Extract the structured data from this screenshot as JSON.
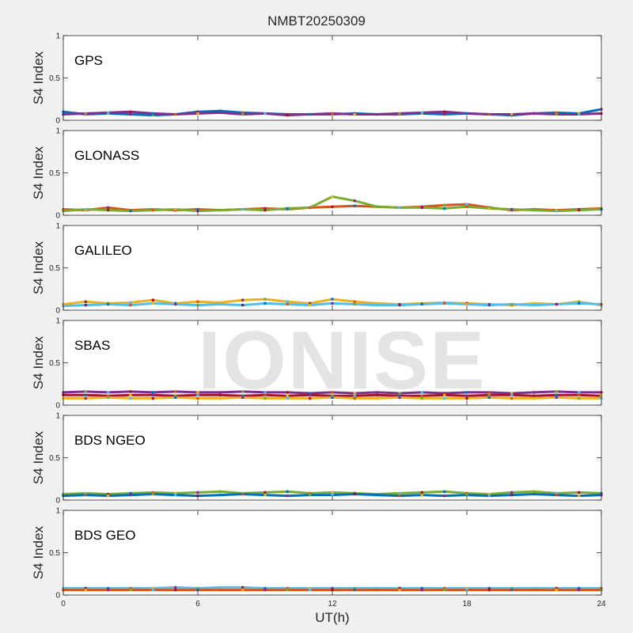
{
  "title": "NMBT20250309",
  "watermark": "IONISE",
  "colors": {
    "series": [
      "#0072BD",
      "#D95319",
      "#EDB120",
      "#7E2F8E",
      "#77AC30",
      "#4DBEEE",
      "#A2142F"
    ],
    "axes": "#262626",
    "panel_bg": "#ffffff"
  },
  "chart_data": [
    {
      "type": "scatter",
      "panel_label": "GPS",
      "ylabel": "S4 Index",
      "xlabel": "UT(h)",
      "xlim": [
        0,
        24
      ],
      "ylim": [
        0,
        1
      ],
      "xticks": [
        0,
        6,
        12,
        18,
        24
      ],
      "yticks": [
        0,
        0.5,
        1
      ],
      "ytick_labels": [
        "0",
        "0.5",
        "1"
      ],
      "grid": false,
      "series": [
        {
          "x": [
            0,
            1,
            2,
            3,
            4,
            5,
            6,
            7,
            8,
            9,
            10,
            11,
            12,
            13,
            14,
            15,
            16,
            17,
            18,
            19,
            20,
            21,
            22,
            23,
            24
          ],
          "values": [
            0.1,
            0.07,
            0.08,
            0.07,
            0.06,
            0.07,
            0.1,
            0.11,
            0.09,
            0.08,
            0.07,
            0.07,
            0.07,
            0.08,
            0.07,
            0.07,
            0.08,
            0.07,
            0.08,
            0.07,
            0.06,
            0.08,
            0.09,
            0.08,
            0.13
          ]
        },
        {
          "x": [
            0,
            1,
            2,
            3,
            4,
            5,
            6,
            7,
            8,
            9,
            10,
            11,
            12,
            13,
            14,
            15,
            16,
            17,
            18,
            19,
            20,
            21,
            22,
            23,
            24
          ],
          "values": [
            0.07,
            0.08,
            0.09,
            0.1,
            0.08,
            0.07,
            0.08,
            0.09,
            0.07,
            0.08,
            0.06,
            0.07,
            0.08,
            0.07,
            0.07,
            0.08,
            0.09,
            0.1,
            0.08,
            0.07,
            0.07,
            0.08,
            0.07,
            0.07,
            0.08
          ]
        }
      ]
    },
    {
      "type": "scatter",
      "panel_label": "GLONASS",
      "ylabel": "S4 Index",
      "xlabel": "UT(h)",
      "xlim": [
        0,
        24
      ],
      "ylim": [
        0,
        1
      ],
      "xticks": [
        0,
        6,
        12,
        18,
        24
      ],
      "yticks": [
        0,
        0.5,
        1
      ],
      "ytick_labels": [
        "0",
        "0.5",
        "1"
      ],
      "grid": false,
      "series": [
        {
          "x": [
            0,
            1,
            2,
            3,
            4,
            5,
            6,
            7,
            8,
            9,
            10,
            11,
            12,
            13,
            14,
            15,
            16,
            17,
            18,
            19,
            20,
            21,
            22,
            23,
            24
          ],
          "values": [
            0.07,
            0.06,
            0.09,
            0.06,
            0.07,
            0.06,
            0.07,
            0.06,
            0.07,
            0.08,
            0.07,
            0.09,
            0.1,
            0.11,
            0.1,
            0.09,
            0.1,
            0.12,
            0.13,
            0.09,
            0.06,
            0.07,
            0.06,
            0.07,
            0.08
          ]
        },
        {
          "x": [
            0,
            1,
            2,
            3,
            4,
            5,
            6,
            7,
            8,
            9,
            10,
            11,
            12,
            13,
            14,
            15,
            16,
            17,
            18,
            19,
            20,
            21,
            22,
            23,
            24
          ],
          "values": [
            0.05,
            0.07,
            0.06,
            0.05,
            0.06,
            0.07,
            0.05,
            0.06,
            0.07,
            0.06,
            0.08,
            0.09,
            0.22,
            0.17,
            0.1,
            0.09,
            0.09,
            0.08,
            0.1,
            0.08,
            0.07,
            0.06,
            0.05,
            0.06,
            0.07
          ]
        }
      ]
    },
    {
      "type": "scatter",
      "panel_label": "GALILEO",
      "ylabel": "S4 Index",
      "xlabel": "UT(h)",
      "xlim": [
        0,
        24
      ],
      "ylim": [
        0,
        1
      ],
      "xticks": [
        0,
        6,
        12,
        18,
        24
      ],
      "yticks": [
        0,
        0.5,
        1
      ],
      "ytick_labels": [
        "0",
        "0.5",
        "1"
      ],
      "grid": false,
      "series": [
        {
          "x": [
            0,
            1,
            2,
            3,
            4,
            5,
            6,
            7,
            8,
            9,
            10,
            11,
            12,
            13,
            14,
            15,
            16,
            17,
            18,
            19,
            20,
            21,
            22,
            23,
            24
          ],
          "values": [
            0.07,
            0.1,
            0.08,
            0.09,
            0.12,
            0.08,
            0.1,
            0.09,
            0.12,
            0.13,
            0.1,
            0.08,
            0.13,
            0.1,
            0.08,
            0.07,
            0.08,
            0.09,
            0.08,
            0.07,
            0.06,
            0.08,
            0.07,
            0.1,
            0.06
          ]
        },
        {
          "x": [
            0,
            1,
            2,
            3,
            4,
            5,
            6,
            7,
            8,
            9,
            10,
            11,
            12,
            13,
            14,
            15,
            16,
            17,
            18,
            19,
            20,
            21,
            22,
            23,
            24
          ],
          "values": [
            0.05,
            0.06,
            0.07,
            0.06,
            0.08,
            0.07,
            0.06,
            0.07,
            0.06,
            0.08,
            0.07,
            0.06,
            0.08,
            0.07,
            0.06,
            0.06,
            0.07,
            0.08,
            0.07,
            0.06,
            0.07,
            0.06,
            0.07,
            0.08,
            0.07
          ]
        }
      ]
    },
    {
      "type": "scatter",
      "panel_label": "SBAS",
      "ylabel": "S4 Index",
      "xlabel": "UT(h)",
      "xlim": [
        0,
        24
      ],
      "ylim": [
        0,
        1
      ],
      "xticks": [
        0,
        6,
        12,
        18,
        24
      ],
      "yticks": [
        0,
        0.5,
        1
      ],
      "ytick_labels": [
        "0",
        "0.5",
        "1"
      ],
      "grid": false,
      "series": [
        {
          "x": [
            0,
            1,
            2,
            3,
            4,
            5,
            6,
            7,
            8,
            9,
            10,
            11,
            12,
            13,
            14,
            15,
            16,
            17,
            18,
            19,
            20,
            21,
            22,
            23,
            24
          ],
          "values": [
            0.15,
            0.16,
            0.15,
            0.16,
            0.15,
            0.16,
            0.15,
            0.15,
            0.16,
            0.15,
            0.15,
            0.14,
            0.15,
            0.14,
            0.15,
            0.14,
            0.15,
            0.14,
            0.15,
            0.15,
            0.14,
            0.15,
            0.16,
            0.15,
            0.15
          ]
        },
        {
          "x": [
            0,
            1,
            2,
            3,
            4,
            5,
            6,
            7,
            8,
            9,
            10,
            11,
            12,
            13,
            14,
            15,
            16,
            17,
            18,
            19,
            20,
            21,
            22,
            23,
            24
          ],
          "values": [
            0.12,
            0.12,
            0.11,
            0.12,
            0.12,
            0.11,
            0.12,
            0.12,
            0.11,
            0.12,
            0.11,
            0.12,
            0.11,
            0.11,
            0.12,
            0.11,
            0.11,
            0.12,
            0.11,
            0.12,
            0.12,
            0.11,
            0.12,
            0.12,
            0.11
          ]
        },
        {
          "x": [
            0,
            1,
            2,
            3,
            4,
            5,
            6,
            7,
            8,
            9,
            10,
            11,
            12,
            13,
            14,
            15,
            16,
            17,
            18,
            19,
            20,
            21,
            22,
            23,
            24
          ],
          "values": [
            0.08,
            0.08,
            0.09,
            0.08,
            0.08,
            0.09,
            0.08,
            0.08,
            0.09,
            0.08,
            0.08,
            0.08,
            0.09,
            0.08,
            0.08,
            0.09,
            0.08,
            0.08,
            0.08,
            0.09,
            0.08,
            0.08,
            0.09,
            0.08,
            0.08
          ]
        }
      ]
    },
    {
      "type": "scatter",
      "panel_label": "BDS NGEO",
      "ylabel": "S4 Index",
      "xlabel": "UT(h)",
      "xlim": [
        0,
        24
      ],
      "ylim": [
        0,
        1
      ],
      "xticks": [
        0,
        6,
        12,
        18,
        24
      ],
      "yticks": [
        0,
        0.5,
        1
      ],
      "ytick_labels": [
        "0",
        "0.5",
        "1"
      ],
      "grid": false,
      "series": [
        {
          "x": [
            0,
            1,
            2,
            3,
            4,
            5,
            6,
            7,
            8,
            9,
            10,
            11,
            12,
            13,
            14,
            15,
            16,
            17,
            18,
            19,
            20,
            21,
            22,
            23,
            24
          ],
          "values": [
            0.07,
            0.08,
            0.07,
            0.08,
            0.09,
            0.08,
            0.09,
            0.1,
            0.08,
            0.09,
            0.1,
            0.08,
            0.09,
            0.08,
            0.07,
            0.08,
            0.09,
            0.1,
            0.08,
            0.07,
            0.09,
            0.1,
            0.08,
            0.09,
            0.08
          ]
        },
        {
          "x": [
            0,
            1,
            2,
            3,
            4,
            5,
            6,
            7,
            8,
            9,
            10,
            11,
            12,
            13,
            14,
            15,
            16,
            17,
            18,
            19,
            20,
            21,
            22,
            23,
            24
          ],
          "values": [
            0.05,
            0.06,
            0.05,
            0.06,
            0.07,
            0.06,
            0.05,
            0.06,
            0.07,
            0.06,
            0.05,
            0.06,
            0.06,
            0.07,
            0.06,
            0.05,
            0.06,
            0.05,
            0.06,
            0.05,
            0.06,
            0.07,
            0.06,
            0.05,
            0.06
          ]
        }
      ]
    },
    {
      "type": "scatter",
      "panel_label": "BDS GEO",
      "ylabel": "S4 Index",
      "xlabel": "UT(h)",
      "xlim": [
        0,
        24
      ],
      "ylim": [
        0,
        1
      ],
      "xticks": [
        0,
        6,
        12,
        18,
        24
      ],
      "xtick_labels": [
        "0",
        "6",
        "12",
        "18",
        "24"
      ],
      "yticks": [
        0,
        0.5,
        1
      ],
      "ytick_labels": [
        "0",
        "0.5",
        "1"
      ],
      "grid": false,
      "series": [
        {
          "x": [
            0,
            1,
            2,
            3,
            4,
            5,
            6,
            7,
            8,
            9,
            10,
            11,
            12,
            13,
            14,
            15,
            16,
            17,
            18,
            19,
            20,
            21,
            22,
            23,
            24
          ],
          "values": [
            0.08,
            0.08,
            0.08,
            0.08,
            0.08,
            0.09,
            0.08,
            0.09,
            0.09,
            0.08,
            0.08,
            0.08,
            0.08,
            0.08,
            0.08,
            0.08,
            0.08,
            0.08,
            0.08,
            0.08,
            0.08,
            0.08,
            0.08,
            0.08,
            0.08
          ]
        },
        {
          "x": [
            0,
            1,
            2,
            3,
            4,
            5,
            6,
            7,
            8,
            9,
            10,
            11,
            12,
            13,
            14,
            15,
            16,
            17,
            18,
            19,
            20,
            21,
            22,
            23,
            24
          ],
          "values": [
            0.06,
            0.06,
            0.06,
            0.06,
            0.06,
            0.06,
            0.06,
            0.06,
            0.06,
            0.06,
            0.06,
            0.06,
            0.06,
            0.06,
            0.06,
            0.06,
            0.06,
            0.06,
            0.06,
            0.06,
            0.06,
            0.06,
            0.06,
            0.06,
            0.06
          ]
        }
      ]
    }
  ]
}
